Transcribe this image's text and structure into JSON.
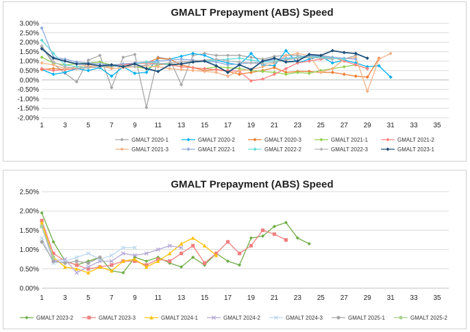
{
  "chart_data": [
    {
      "type": "line",
      "title": "GMALT Prepayment (ABS) Speed",
      "xlabel": "",
      "ylabel": "",
      "x_ticks": [
        1,
        3,
        5,
        7,
        9,
        11,
        13,
        15,
        17,
        19,
        21,
        23,
        25,
        27,
        29,
        31,
        33,
        35
      ],
      "y_ticks": [
        "3.00%",
        "2.50%",
        "2.00%",
        "1.50%",
        "1.00%",
        "0.50%",
        "0.00%",
        "-0.50%",
        "-1.00%",
        "-1.50%",
        "-2.00%"
      ],
      "ylim": [
        -2.0,
        3.0
      ],
      "xlim": [
        1,
        36
      ],
      "grid": "horizontal",
      "legend_position": "bottom",
      "series": [
        {
          "name": "GMALT 2020-1",
          "color": "#a6a6a6",
          "marker": "diamond",
          "values": [
            1.75,
            0.85,
            0.35,
            -0.1,
            1.05,
            1.3,
            -0.4,
            1.2,
            1.35,
            -1.45,
            1.2,
            1.1,
            -0.25,
            1.3,
            1.4,
            1.3,
            1.3,
            1.3,
            1.2,
            1.1,
            1.25,
            1.3,
            1.3,
            1.2,
            1.3,
            1.2,
            1.1,
            1.3
          ]
        },
        {
          "name": "GMALT 2020-2",
          "color": "#00b0f0",
          "marker": "diamond",
          "values": [
            0.55,
            0.3,
            0.4,
            0.6,
            0.5,
            0.65,
            0.2,
            0.7,
            0.35,
            0.4,
            1.15,
            1.1,
            1.25,
            1.4,
            1.3,
            1.05,
            0.9,
            0.8,
            1.4,
            0.8,
            0.75,
            1.55,
            0.9,
            1.1,
            1.25,
            0.9,
            1.05,
            0.9,
            0.7,
            0.75,
            0.15
          ]
        },
        {
          "name": "GMALT 2020-3",
          "color": "#ed7d31",
          "marker": "diamond",
          "values": [
            0.55,
            0.6,
            0.55,
            0.6,
            0.7,
            0.7,
            0.7,
            0.8,
            0.9,
            0.9,
            1.15,
            1.1,
            0.8,
            0.65,
            0.5,
            0.55,
            0.45,
            0.3,
            0.4,
            0.5,
            0.65,
            0.4,
            0.45,
            0.45,
            0.4,
            0.4,
            0.3,
            0.2,
            0.15,
            1.15
          ]
        },
        {
          "name": "GMALT 2021-1",
          "color": "#92d050",
          "marker": "diamond",
          "values": [
            1.2,
            0.9,
            0.8,
            0.85,
            0.9,
            0.95,
            0.8,
            0.75,
            0.7,
            0.6,
            0.8,
            0.85,
            0.7,
            0.65,
            0.6,
            0.7,
            0.65,
            0.6,
            0.5,
            0.45,
            0.4,
            0.3,
            0.4,
            0.35,
            0.5,
            0.6,
            0.7,
            0.8,
            0.6
          ]
        },
        {
          "name": "GMALT 2021-2",
          "color": "#ff7f7f",
          "marker": "diamond",
          "values": [
            0.6,
            0.5,
            0.55,
            0.6,
            0.65,
            0.7,
            0.75,
            0.8,
            0.85,
            0.9,
            0.85,
            0.8,
            0.7,
            0.65,
            0.6,
            0.55,
            0.5,
            0.45,
            -0.05,
            0.05,
            0.3,
            0.6,
            0.9,
            1.0,
            1.1,
            1.2,
            1.0,
            0.8,
            0.6
          ]
        },
        {
          "name": "GMALT 2021-3",
          "color": "#f4b183",
          "marker": "diamond",
          "values": [
            0.9,
            0.8,
            0.6,
            0.7,
            0.8,
            0.75,
            0.6,
            0.65,
            0.7,
            0.75,
            0.7,
            0.6,
            0.55,
            0.5,
            0.45,
            0.4,
            0.2,
            0.5,
            0.55,
            0.7,
            0.9,
            1.3,
            1.4,
            1.3,
            0.4,
            0.6,
            1.1,
            1.2,
            -0.6,
            1.1,
            1.4
          ]
        },
        {
          "name": "GMALT 2022-1",
          "color": "#8faadc",
          "marker": "diamond",
          "values": [
            2.75,
            1.2,
            1.1,
            0.95,
            0.9,
            0.85,
            0.8,
            0.85,
            0.9,
            0.95,
            1.0,
            1.05,
            1.1,
            1.05,
            1.0,
            0.95,
            0.8,
            0.85,
            0.9,
            0.95,
            1.1,
            1.15,
            1.2,
            1.3,
            1.25,
            1.2,
            1.15,
            1.1
          ]
        },
        {
          "name": "GMALT 2022-2",
          "color": "#66d9d9",
          "marker": "diamond",
          "values": [
            2.1,
            1.4,
            0.8,
            0.7,
            0.65,
            0.7,
            0.75,
            0.7,
            0.85,
            0.95,
            0.9,
            0.8,
            0.85,
            0.95,
            1.0,
            1.05,
            1.1,
            1.15,
            1.05,
            0.95,
            1.0,
            1.1,
            1.2,
            1.25,
            1.2,
            1.15,
            1.1
          ]
        },
        {
          "name": "GMALT 2022-3",
          "color": "#b4b4b4",
          "marker": "diamond",
          "values": [
            1.8,
            0.95,
            0.7,
            0.6,
            0.65,
            0.7,
            0.8,
            0.75,
            0.7,
            0.8,
            0.85,
            0.9,
            0.95,
            1.0,
            1.05,
            1.1,
            1.0,
            0.95,
            0.9,
            0.85,
            0.95,
            1.05,
            1.15,
            1.2,
            1.15,
            1.1
          ]
        },
        {
          "name": "GMALT 2023-1",
          "color": "#1f4e79",
          "marker": "diamond",
          "values": [
            1.65,
            1.15,
            1.0,
            0.85,
            0.85,
            0.75,
            0.8,
            0.7,
            0.85,
            0.6,
            0.45,
            0.8,
            0.85,
            0.95,
            1.0,
            0.75,
            0.4,
            0.8,
            0.55,
            1.0,
            1.15,
            0.95,
            1.0,
            1.35,
            1.3,
            1.55,
            1.45,
            1.4,
            1.15
          ]
        }
      ]
    },
    {
      "type": "line",
      "title": "GMALT Prepayment (ABS) Speed",
      "xlabel": "",
      "ylabel": "",
      "x_ticks": [
        1,
        3,
        5,
        7,
        9,
        11,
        13,
        15,
        17,
        19,
        21,
        23,
        25,
        27,
        29,
        31,
        33,
        35
      ],
      "y_ticks": [
        "2.50%",
        "2.00%",
        "1.50%",
        "1.00%",
        "0.50%",
        "0.00%"
      ],
      "ylim": [
        0.0,
        2.5
      ],
      "xlim": [
        1,
        36
      ],
      "grid": "horizontal",
      "legend_position": "bottom",
      "series": [
        {
          "name": "GMALT 2023-2",
          "color": "#70ad47",
          "marker": "diamond",
          "values": [
            1.95,
            1.2,
            0.7,
            0.6,
            0.7,
            0.8,
            0.45,
            0.4,
            0.8,
            0.7,
            0.8,
            0.65,
            0.55,
            0.8,
            0.6,
            0.9,
            0.7,
            0.6,
            1.3,
            1.35,
            1.6,
            1.7,
            1.3,
            1.15
          ]
        },
        {
          "name": "GMALT 2023-3",
          "color": "#f08080",
          "marker": "square",
          "values": [
            1.75,
            0.9,
            0.7,
            0.6,
            0.5,
            0.55,
            0.6,
            0.7,
            0.7,
            0.6,
            0.75,
            0.7,
            0.9,
            1.1,
            0.65,
            0.9,
            1.2,
            0.9,
            1.1,
            1.5,
            1.4,
            1.25
          ]
        },
        {
          "name": "GMALT 2024-1",
          "color": "#ffc000",
          "marker": "triangle",
          "values": [
            1.7,
            0.8,
            0.55,
            0.5,
            0.4,
            0.55,
            0.45,
            0.7,
            0.75,
            0.55,
            0.7,
            0.9,
            1.15,
            1.3,
            1.1,
            0.85
          ]
        },
        {
          "name": "GMALT 2024-2",
          "color": "#b4a7d6",
          "marker": "cross",
          "values": [
            1.6,
            0.7,
            0.75,
            0.4,
            0.55,
            0.7,
            0.7,
            0.9,
            0.85,
            0.9,
            1.0,
            1.1,
            1.05
          ]
        },
        {
          "name": "GMALT 2024-3",
          "color": "#bdd7ee",
          "marker": "cross",
          "values": [
            1.3,
            0.65,
            0.7,
            0.8,
            0.9,
            0.75,
            0.85,
            1.05,
            1.05
          ]
        },
        {
          "name": "GMALT 2025-1",
          "color": "#a6a6a6",
          "marker": "circle",
          "values": [
            1.2,
            0.7,
            0.65,
            0.7,
            0.65,
            0.8
          ]
        },
        {
          "name": "GMALT 2025-2",
          "color": "#a9d18e",
          "marker": "circle",
          "values": [
            1.6,
            0.8
          ]
        }
      ]
    }
  ]
}
